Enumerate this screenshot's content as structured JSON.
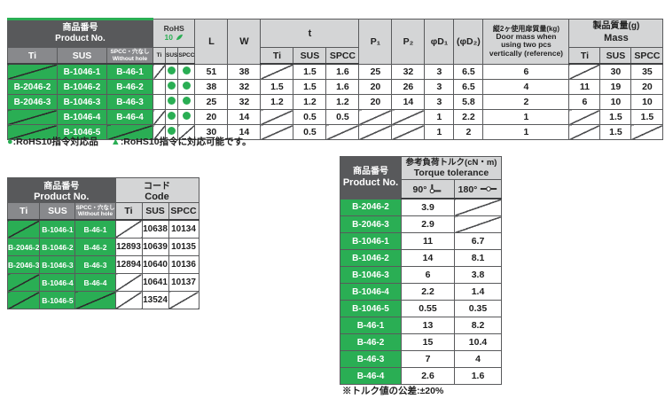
{
  "colors": {
    "green": "#2aae54",
    "header_dark": "#58595b",
    "header_mid": "#88898c",
    "header_light": "#d4d5d6"
  },
  "materials": {
    "ti": "Ti",
    "sus": "SUS",
    "spcc": "SPCC"
  },
  "spec": {
    "product_group_jp": "商品番号",
    "product_group_en": "Product No.",
    "spcc_hole_jp": "SPCC・穴なし",
    "spcc_hole_en": "Without hole",
    "rohs_label": "RoHS",
    "rohs_ten": "10",
    "l": "L",
    "w": "W",
    "t": "t",
    "p1": "P₁",
    "p2": "P₂",
    "d1": "φD₁",
    "d2": "(φD₂)",
    "door_jp": "縦2ヶ使用扉質量(kg)",
    "door_en1": "Door mass when",
    "door_en2": "using two pcs",
    "door_en3": "vertically (reference)",
    "mass_jp": "製品質量(g)",
    "mass_en": "Mass",
    "rows": [
      [
        "g/",
        "g:B-1046-1",
        "g:B-46-1",
        "/",
        "●",
        "●",
        "51",
        "38",
        "/",
        "1.5",
        "1.6",
        "25",
        "32",
        "3",
        "6.5",
        "6",
        "/",
        "30",
        "35"
      ],
      [
        "g:B-2046-2",
        "g:B-1046-2",
        "g:B-46-2",
        "",
        "●",
        "●",
        "38",
        "32",
        "1.5",
        "1.5",
        "1.6",
        "20",
        "26",
        "3",
        "6.5",
        "4",
        "11",
        "19",
        "20"
      ],
      [
        "g:B-2046-3",
        "g:B-1046-3",
        "g:B-46-3",
        "",
        "●",
        "●",
        "25",
        "32",
        "1.2",
        "1.2",
        "1.2",
        "20",
        "14",
        "3",
        "5.8",
        "2",
        "6",
        "10",
        "10"
      ],
      [
        "g/",
        "g:B-1046-4",
        "g:B-46-4",
        "/",
        "●",
        "●",
        "20",
        "14",
        "/",
        "0.5",
        "0.5",
        "/",
        "/",
        "1",
        "2.2",
        "1",
        "/",
        "1.5",
        "1.5"
      ],
      [
        "g/",
        "g:B-1046-5",
        "g/",
        "/",
        "●",
        "/",
        "30",
        "14",
        "/",
        "0.5",
        "/",
        "/",
        "/",
        "1",
        "2",
        "1",
        "/",
        "1.5",
        "/"
      ]
    ]
  },
  "legend": {
    "dot": "●",
    "dot_text": ":RoHS10指令対応品",
    "tri": "▲",
    "tri_text": ":RoHS10指令に対応可能です。"
  },
  "code": {
    "product_group_jp": "商品番号",
    "product_group_en": "Product No.",
    "spcc_hole_jp": "SPCC・穴なし",
    "spcc_hole_en": "Without hole",
    "group_jp": "コード",
    "group_en": "Code",
    "rows": [
      [
        "g/",
        "g:B-1046-1",
        "g:B-46-1",
        "/",
        "10638",
        "10134"
      ],
      [
        "g:B-2046-2",
        "g:B-1046-2",
        "g:B-46-2",
        "12893",
        "10639",
        "10135"
      ],
      [
        "g:B-2046-3",
        "g:B-1046-3",
        "g:B-46-3",
        "12894",
        "10640",
        "10136"
      ],
      [
        "g/",
        "g:B-1046-4",
        "g:B-46-4",
        "/",
        "10641",
        "10137"
      ],
      [
        "g/",
        "g:B-1046-5",
        "g/",
        "/",
        "13524",
        "/"
      ]
    ]
  },
  "torque": {
    "product_group_jp": "商品番号",
    "product_group_en": "Product No.",
    "group_jp": "参考負荷トルク(cN・m)",
    "group_en": "Torque tolerance",
    "deg90": "90°",
    "deg180": "180°",
    "rows": [
      [
        "g:B-2046-2",
        "3.9",
        "/"
      ],
      [
        "g:B-2046-3",
        "2.9",
        "/"
      ],
      [
        "g:B-1046-1",
        "11",
        "6.7"
      ],
      [
        "g:B-1046-2",
        "14",
        "8.1"
      ],
      [
        "g:B-1046-3",
        "6",
        "3.8"
      ],
      [
        "g:B-1046-4",
        "2.2",
        "1.4"
      ],
      [
        "g:B-1046-5",
        "0.55",
        "0.35"
      ],
      [
        "g:B-46-1",
        "13",
        "8.2"
      ],
      [
        "g:B-46-2",
        "15",
        "10.4"
      ],
      [
        "g:B-46-3",
        "7",
        "4"
      ],
      [
        "g:B-46-4",
        "2.6",
        "1.6"
      ]
    ],
    "note": "※トルク値の公差:±20%"
  }
}
